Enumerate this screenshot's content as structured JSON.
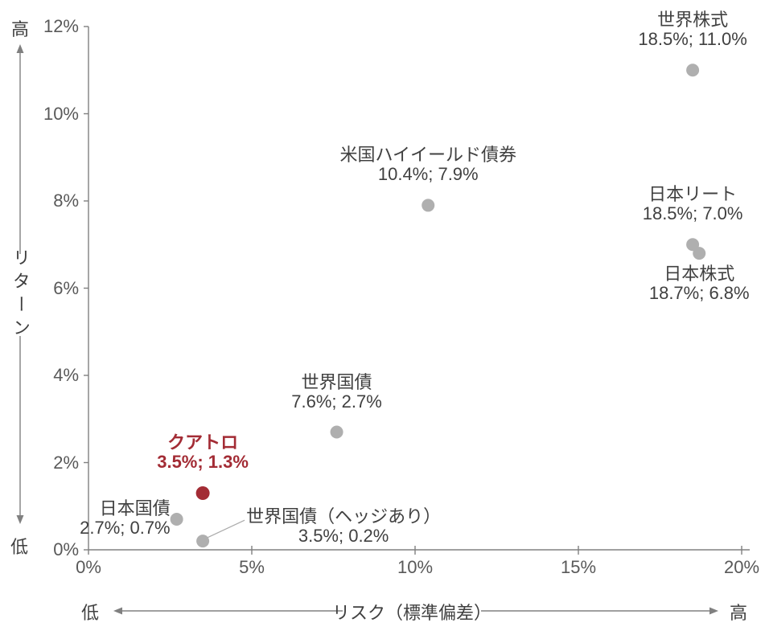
{
  "chart_data": {
    "type": "scatter",
    "title": "",
    "xlabel": "リスク（標準偏差）",
    "ylabel": "リターン",
    "xlim": [
      0,
      20
    ],
    "ylim": [
      0,
      12
    ],
    "grid": false,
    "legend": "none",
    "x_ticks": [
      {
        "value": 0,
        "label": "0%"
      },
      {
        "value": 5,
        "label": "5%"
      },
      {
        "value": 10,
        "label": "10%"
      },
      {
        "value": 15,
        "label": "15%"
      },
      {
        "value": 20,
        "label": "20%"
      }
    ],
    "y_ticks": [
      {
        "value": 0,
        "label": "0%"
      },
      {
        "value": 2,
        "label": "2%"
      },
      {
        "value": 4,
        "label": "4%"
      },
      {
        "value": 6,
        "label": "6%"
      },
      {
        "value": 8,
        "label": "8%"
      },
      {
        "value": 10,
        "label": "10%"
      },
      {
        "value": 12,
        "label": "12%"
      }
    ],
    "annotations": {
      "y_high": "高",
      "y_low": "低",
      "x_low": "低",
      "x_high": "高"
    },
    "colors": {
      "point": "#afafaf",
      "highlight": "#a32c35",
      "axis": "#808080",
      "leader": "#ababab",
      "label_text": "#404040",
      "tick_text": "#595959"
    },
    "points": [
      {
        "name": "世界株式",
        "risk": 18.5,
        "return": 11.0,
        "value_label": "18.5%; 11.0%",
        "highlight": false,
        "label_side": "above",
        "leader_line": false
      },
      {
        "name": "米国ハイイールド債券",
        "risk": 10.4,
        "return": 7.9,
        "value_label": "10.4%; 7.9%",
        "highlight": false,
        "label_side": "above",
        "leader_line": false
      },
      {
        "name": "日本リート",
        "risk": 18.5,
        "return": 7.0,
        "value_label": "18.5%; 7.0%",
        "highlight": false,
        "label_side": "above",
        "leader_line": false
      },
      {
        "name": "日本株式",
        "risk": 18.7,
        "return": 6.8,
        "value_label": "18.7%; 6.8%",
        "highlight": false,
        "label_side": "below",
        "leader_line": false
      },
      {
        "name": "世界国債",
        "risk": 7.6,
        "return": 2.7,
        "value_label": "7.6%; 2.7%",
        "highlight": false,
        "label_side": "above",
        "leader_line": false
      },
      {
        "name": "クアトロ",
        "risk": 3.5,
        "return": 1.3,
        "value_label": "3.5%; 1.3%",
        "highlight": true,
        "label_side": "above",
        "leader_line": false
      },
      {
        "name": "日本国債",
        "risk": 2.7,
        "return": 0.7,
        "value_label": "2.7%; 0.7%",
        "highlight": false,
        "label_side": "left",
        "leader_line": false
      },
      {
        "name": "世界国債（ヘッジあり）",
        "risk": 3.5,
        "return": 0.2,
        "value_label": "3.5%; 0.2%",
        "highlight": false,
        "label_side": "right",
        "leader_line": true
      }
    ]
  }
}
